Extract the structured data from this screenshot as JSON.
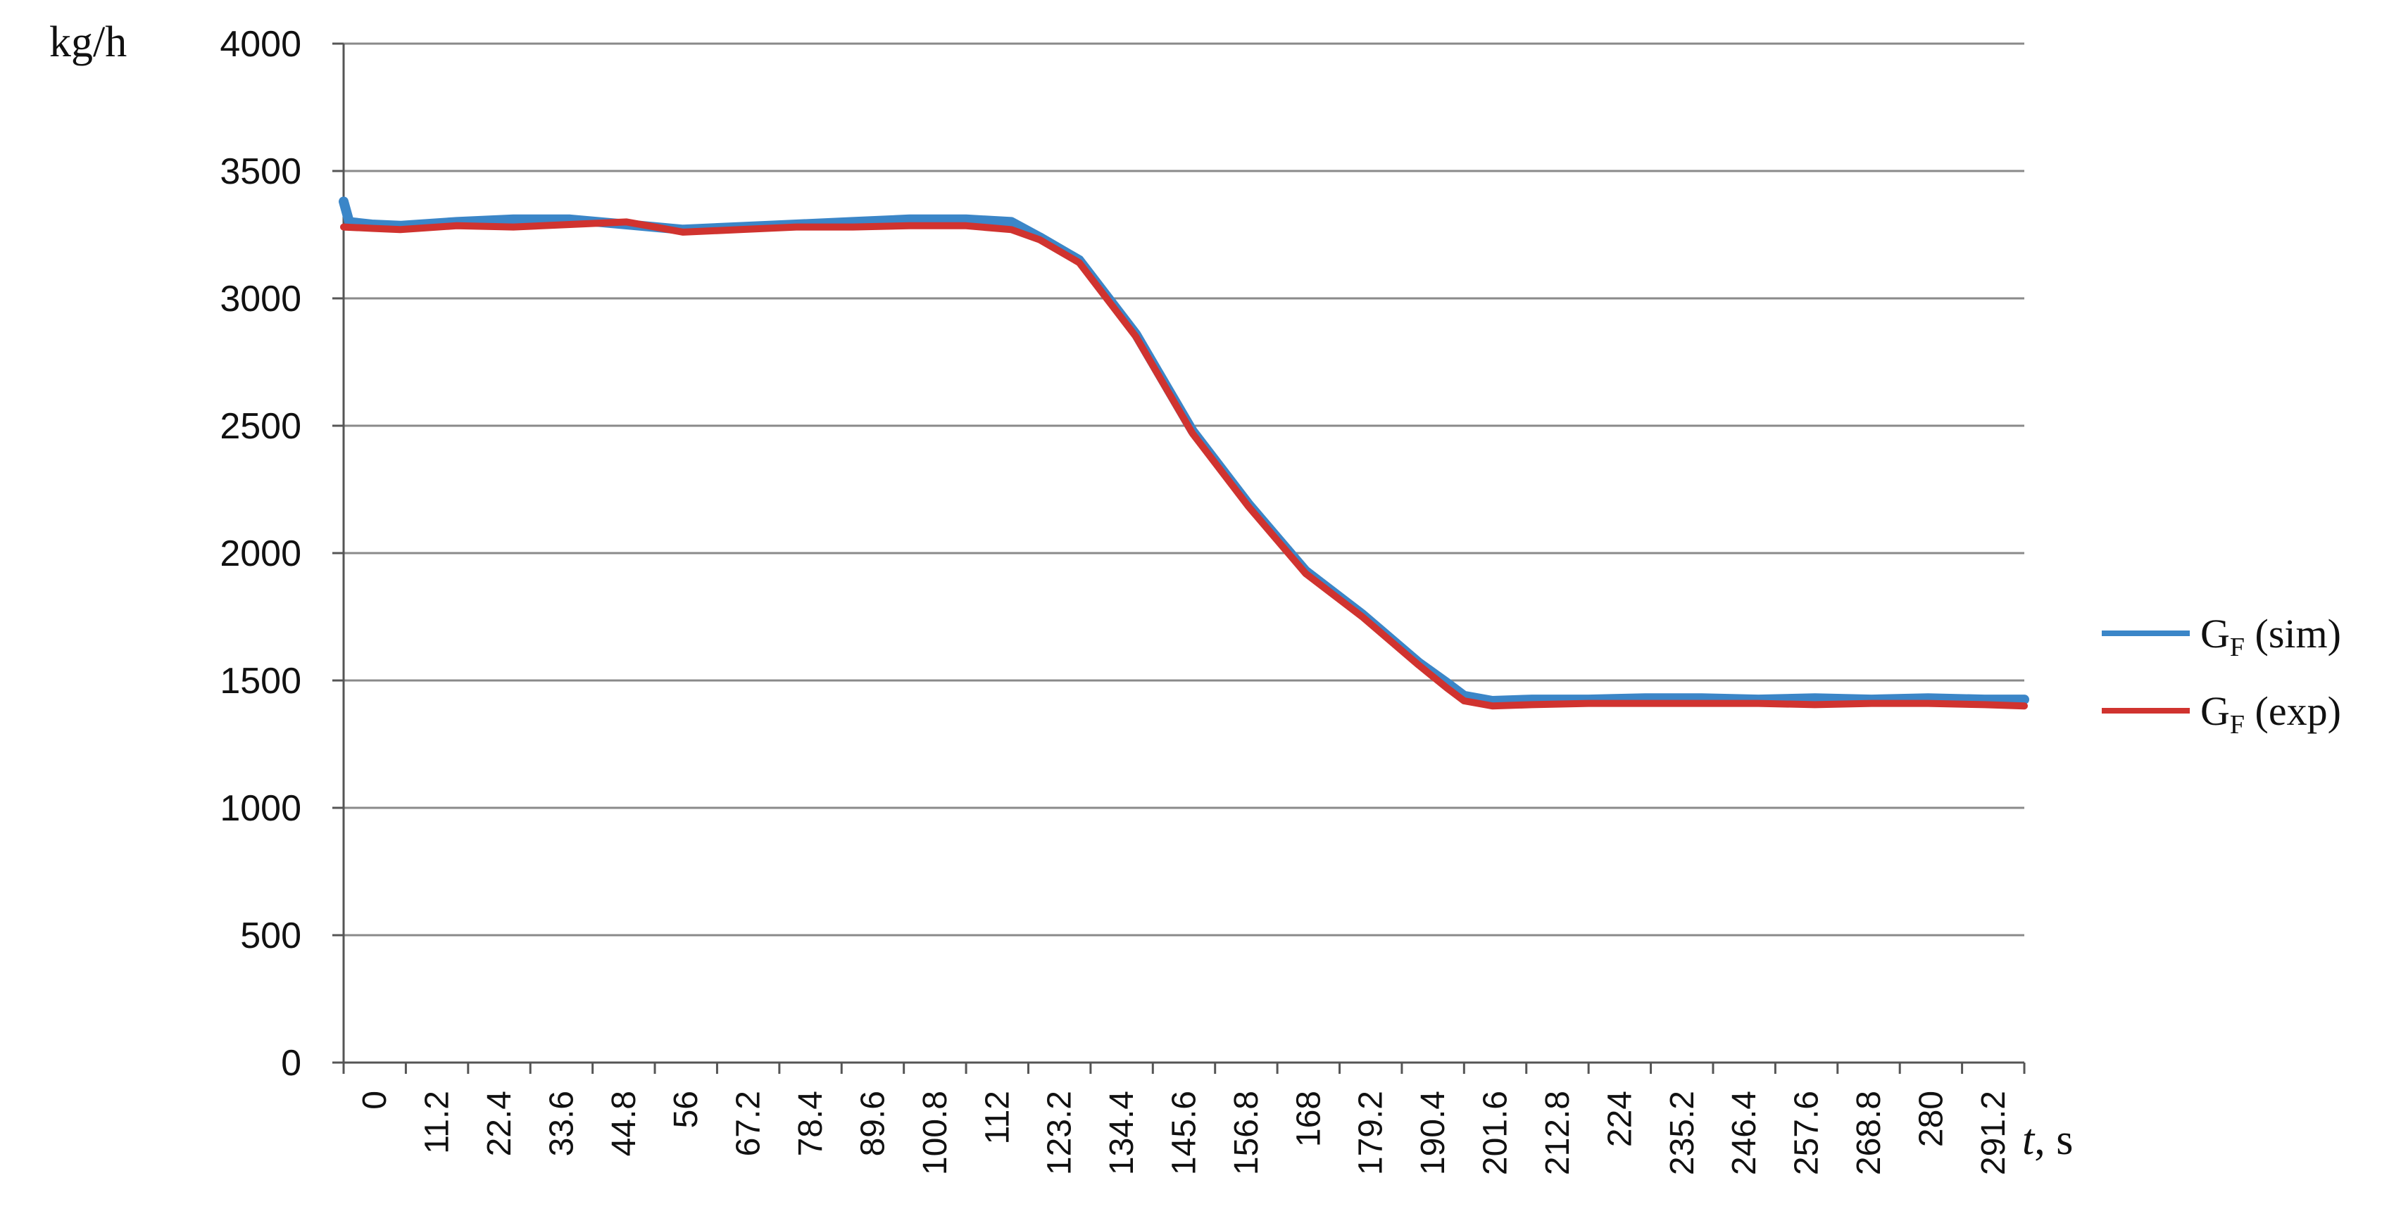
{
  "chart_data": {
    "type": "line",
    "ylabel": "kg/h",
    "xlabel_italic": "t",
    "xlabel_unit": ", s",
    "ylim": [
      0,
      4000
    ],
    "yticks": [
      0,
      500,
      1000,
      1500,
      2000,
      2500,
      3000,
      3500,
      4000
    ],
    "xlim": [
      0,
      297
    ],
    "xticks": [
      "0",
      "11.2",
      "22.4",
      "33.6",
      "44.8",
      "56",
      "67.2",
      "78.4",
      "89.6",
      "100.8",
      "112",
      "123.2",
      "134.4",
      "145.6",
      "156.8",
      "168",
      "179.2",
      "190.4",
      "201.6",
      "212.8",
      "224",
      "235.2",
      "246.4",
      "257.6",
      "268.8",
      "280",
      "291.2"
    ],
    "grid": "horizontal",
    "legend_position": "right",
    "series": [
      {
        "name": "G",
        "name_sub": "F",
        "name_suffix": " (sim)",
        "color": "#3b86c8",
        "x": [
          0,
          1,
          5,
          10,
          20,
          30,
          40,
          50,
          60,
          70,
          80,
          90,
          100,
          110,
          118,
          123,
          130,
          140,
          150,
          160,
          170,
          180,
          190,
          195,
          198,
          203,
          210,
          220,
          230,
          240,
          250,
          260,
          270,
          280,
          290,
          297
        ],
        "values": [
          3380,
          3300,
          3290,
          3285,
          3300,
          3310,
          3310,
          3290,
          3270,
          3280,
          3290,
          3300,
          3310,
          3310,
          3300,
          3240,
          3150,
          2860,
          2480,
          2190,
          1930,
          1760,
          1570,
          1490,
          1440,
          1420,
          1425,
          1425,
          1430,
          1430,
          1425,
          1430,
          1425,
          1430,
          1425,
          1425
        ]
      },
      {
        "name": "G",
        "name_sub": "F",
        "name_suffix": " (exp)",
        "color": "#d0332f",
        "x": [
          0,
          5,
          10,
          20,
          30,
          40,
          50,
          55,
          60,
          70,
          80,
          90,
          100,
          110,
          118,
          123,
          130,
          140,
          150,
          160,
          170,
          180,
          190,
          195,
          198,
          203,
          210,
          220,
          230,
          240,
          250,
          260,
          270,
          280,
          290,
          297
        ],
        "values": [
          3280,
          3275,
          3270,
          3285,
          3280,
          3290,
          3300,
          3280,
          3260,
          3270,
          3280,
          3280,
          3285,
          3285,
          3270,
          3230,
          3140,
          2850,
          2470,
          2180,
          1920,
          1750,
          1560,
          1470,
          1420,
          1400,
          1405,
          1410,
          1410,
          1410,
          1410,
          1405,
          1410,
          1410,
          1405,
          1400
        ]
      }
    ]
  }
}
